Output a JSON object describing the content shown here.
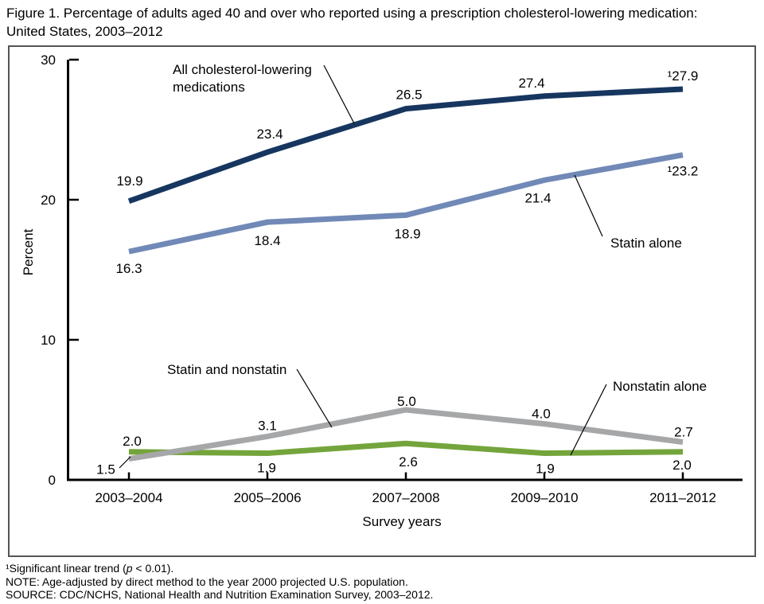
{
  "figure": {
    "title_line1": "Figure 1. Percentage of adults aged 40 and over who reported using a prescription cholesterol-lowering medication:",
    "title_line2": "United States, 2003–2012"
  },
  "footnotes": {
    "note1_prefix": "¹Significant linear trend (",
    "note1_italic": "p",
    "note1_suffix": " < 0.01).",
    "note2": "NOTE: Age-adjusted by direct method to the year 2000 projected U.S. population.",
    "note3": "SOURCE: CDC/NCHS, National Health and Nutrition Examination Survey, 2003–2012."
  },
  "chart_data": {
    "type": "line",
    "title": "Percentage of adults aged 40 and over who reported using a prescription cholesterol-lowering medication: United States, 2003–2012",
    "xlabel": "Survey years",
    "ylabel": "Percent",
    "categories": [
      "2003–2004",
      "2005–2006",
      "2007–2008",
      "2009–2010",
      "2011–2012"
    ],
    "y_ticks": [
      0,
      10,
      20,
      30
    ],
    "ylim": [
      0,
      30
    ],
    "grid": false,
    "legend_position": "inline-annotations",
    "series": [
      {
        "name": "All cholesterol-lowering medications",
        "label_lines": [
          "All cholesterol-lowering",
          "medications"
        ],
        "color": "#16365F",
        "values": [
          19.9,
          23.4,
          26.5,
          27.4,
          27.9
        ],
        "point_labels": [
          "19.9",
          "23.4",
          "26.5",
          "27.4",
          "¹27.9"
        ]
      },
      {
        "name": "Statin alone",
        "label_lines": [
          "Statin alone"
        ],
        "color": "#7189B7",
        "values": [
          16.3,
          18.4,
          18.9,
          21.4,
          23.2
        ],
        "point_labels": [
          "16.3",
          "18.4",
          "18.9",
          "21.4",
          "¹23.2"
        ]
      },
      {
        "name": "Statin and nonstatin",
        "label_lines": [
          "Statin and nonstatin"
        ],
        "color": "#A6A7A9",
        "values": [
          1.5,
          3.1,
          5.0,
          4.0,
          2.7
        ],
        "point_labels": [
          "1.5",
          "3.1",
          "5.0",
          "4.0",
          "2.7"
        ]
      },
      {
        "name": "Nonstatin alone",
        "label_lines": [
          "Nonstatin alone"
        ],
        "color": "#74A53C",
        "values": [
          2.0,
          1.9,
          2.6,
          1.9,
          2.0
        ],
        "point_labels": [
          "2.0",
          "1.9",
          "2.6",
          "1.9",
          "2.0"
        ]
      }
    ]
  }
}
